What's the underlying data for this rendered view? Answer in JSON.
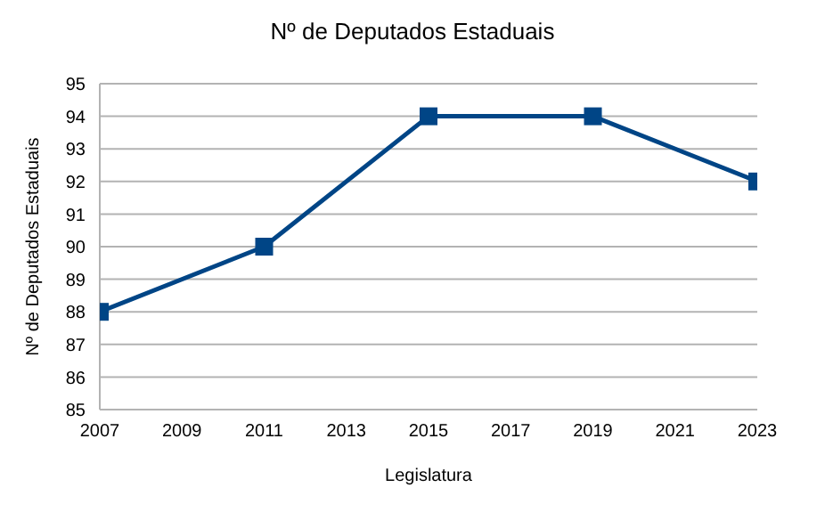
{
  "chart_data": {
    "type": "line",
    "title": "Nº de Deputados Estaduais",
    "xlabel": "Legislatura",
    "ylabel": "Nº de Deputados Estaduais",
    "x": [
      2007,
      2011,
      2015,
      2019,
      2023
    ],
    "series": [
      {
        "color": "#004586",
        "values": [
          88,
          90,
          94,
          94,
          92
        ]
      }
    ],
    "xlim": [
      2007,
      2023
    ],
    "xticks": [
      2007,
      2009,
      2011,
      2013,
      2015,
      2017,
      2019,
      2021,
      2023
    ],
    "ylim": [
      85,
      95
    ],
    "yticks": [
      85,
      86,
      87,
      88,
      89,
      90,
      91,
      92,
      93,
      94,
      95
    ],
    "grid": "y",
    "marker": "square",
    "line_style": "solid"
  }
}
